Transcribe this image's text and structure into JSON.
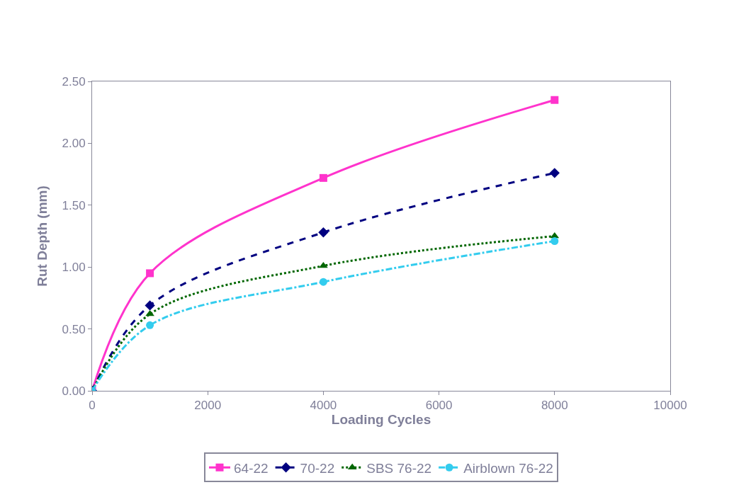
{
  "chart_data": {
    "type": "line",
    "xlabel": "Loading Cycles",
    "ylabel": "Rut Depth (mm)",
    "x": [
      0,
      1000,
      4000,
      8000
    ],
    "series": [
      {
        "name": "64-22",
        "color": "#ff33cc",
        "values": [
          0,
          0.95,
          1.72,
          2.35
        ],
        "marker": "square",
        "line_style": "solid"
      },
      {
        "name": "70-22",
        "color": "#000080",
        "values": [
          0,
          0.69,
          1.28,
          1.76
        ],
        "marker": "diamond",
        "line_style": "dashed"
      },
      {
        "name": "SBS 76-22",
        "color": "#006600",
        "values": [
          0,
          0.62,
          1.01,
          1.25
        ],
        "marker": "triangle",
        "line_style": "dotted"
      },
      {
        "name": "Airblown 76-22",
        "color": "#33ccee",
        "values": [
          0,
          0.53,
          0.88,
          1.21
        ],
        "marker": "circle",
        "line_style": "dashdot"
      }
    ],
    "xlim": [
      0,
      10000
    ],
    "xticks": [
      0,
      2000,
      4000,
      6000,
      8000,
      10000
    ],
    "ylim": [
      0,
      2.5
    ],
    "yticks": [
      {
        "value": 0,
        "label": "0.00"
      },
      {
        "value": 0.5,
        "label": "0.50"
      },
      {
        "value": 1,
        "label": "1.00"
      },
      {
        "value": 1.5,
        "label": "1.50"
      },
      {
        "value": 2,
        "label": "2.00"
      },
      {
        "value": 2.5,
        "label": "2.50"
      }
    ],
    "legend": "bottom"
  }
}
